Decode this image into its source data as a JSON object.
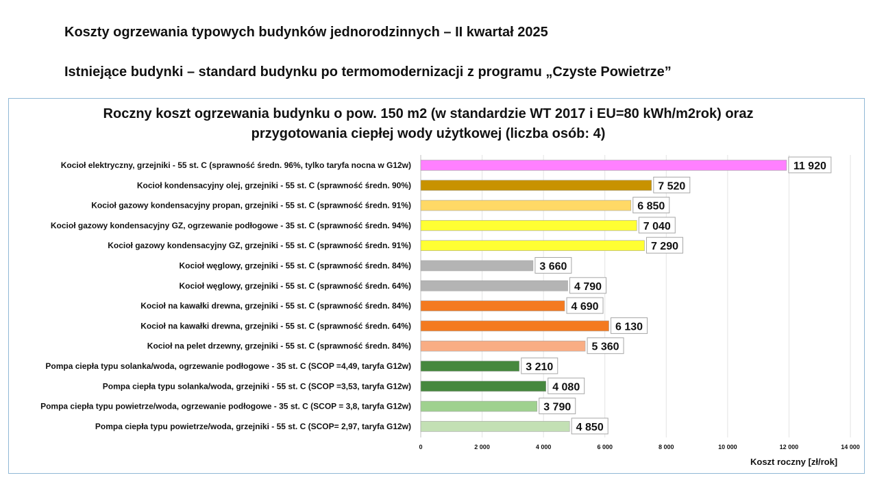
{
  "header": {
    "title": "Koszty ogrzewania typowych budynków jednorodzinnych – II kwartał 2025",
    "subtitle": "Istniejące budynki – standard budynku po termomodernizacji z programu „Czyste Powietrze”"
  },
  "chart_data": {
    "type": "bar",
    "orientation": "horizontal",
    "title_line1": "Roczny koszt ogrzewania budynku o pow. 150 m2 (w standardzie WT 2017 i EU=80 kWh/m2rok) oraz",
    "title_line2": "przygotowania ciepłej wody użytkowej (liczba osób: 4)",
    "xlabel": "Koszt roczny [zł/rok]",
    "ylabel": "",
    "xlim": [
      0,
      14000
    ],
    "xticks": [
      0,
      2000,
      4000,
      6000,
      8000,
      10000,
      12000,
      14000
    ],
    "xtick_labels": [
      "0",
      "2 000",
      "4 000",
      "6 000",
      "8 000",
      "10 000",
      "12 000",
      "14 000"
    ],
    "grid": "vertical",
    "legend": "none",
    "categories": [
      "Kocioł  elektryczny,  grzejniki - 55 st. C  (sprawność średn. 96%, tylko taryfa nocna w G12w)",
      "Kocioł  kondensacyjny olej,  grzejniki - 55 st. C (sprawność średn. 90%)",
      "Kocioł gazowy kondensacyjny propan, grzejniki - 55 st. C (sprawność średn. 91%)",
      "Kocioł gazowy kondensacyjny GZ, ogrzewanie podłogowe - 35 st. C (sprawność średn. 94%)",
      "Kocioł gazowy kondensacyjny GZ, grzejniki - 55 st. C (sprawność średn. 91%)",
      "Kocioł węglowy,  grzejniki - 55 st. C (sprawność średn. 84%)",
      "Kocioł węglowy,  grzejniki - 55 st. C (sprawność średn. 64%)",
      "Kocioł na kawałki drewna, grzejniki - 55 st. C (sprawność średn. 84%)",
      "Kocioł na kawałki drewna, grzejniki - 55 st. C (sprawność średn. 64%)",
      "Kocioł na pelet drzewny, grzejniki - 55 st. C (sprawność średn. 84%)",
      "Pompa ciepła typu solanka/woda, ogrzewanie podłogowe - 35 st. C (SCOP =4,49, taryfa G12w)",
      "Pompa ciepła typu solanka/woda, grzejniki - 55 st. C (SCOP =3,53, taryfa G12w)",
      "Pompa ciepła typu powietrze/woda, ogrzewanie podłogowe - 35 st. C (SCOP = 3,8, taryfa G12w)",
      "Pompa ciepła typu powietrze/woda, grzejniki - 55 st. C (SCOP= 2,97, taryfa G12w)"
    ],
    "values": [
      11920,
      7520,
      6850,
      7040,
      7290,
      3660,
      4790,
      4690,
      6130,
      5360,
      3210,
      4080,
      3790,
      4850
    ],
    "value_labels": [
      "11 920",
      "7 520",
      "6 850",
      "7 040",
      "7 290",
      "3 660",
      "4 790",
      "4 690",
      "6 130",
      "5 360",
      "3 210",
      "4 080",
      "3 790",
      "4 850"
    ],
    "colors": [
      "#ff80ff",
      "#c89200",
      "#ffd966",
      "#ffff33",
      "#ffff33",
      "#b4b4b4",
      "#b4b4b4",
      "#f47a20",
      "#f47a20",
      "#f9ad84",
      "#46883e",
      "#46883e",
      "#9fd18f",
      "#c3e0b4"
    ]
  }
}
